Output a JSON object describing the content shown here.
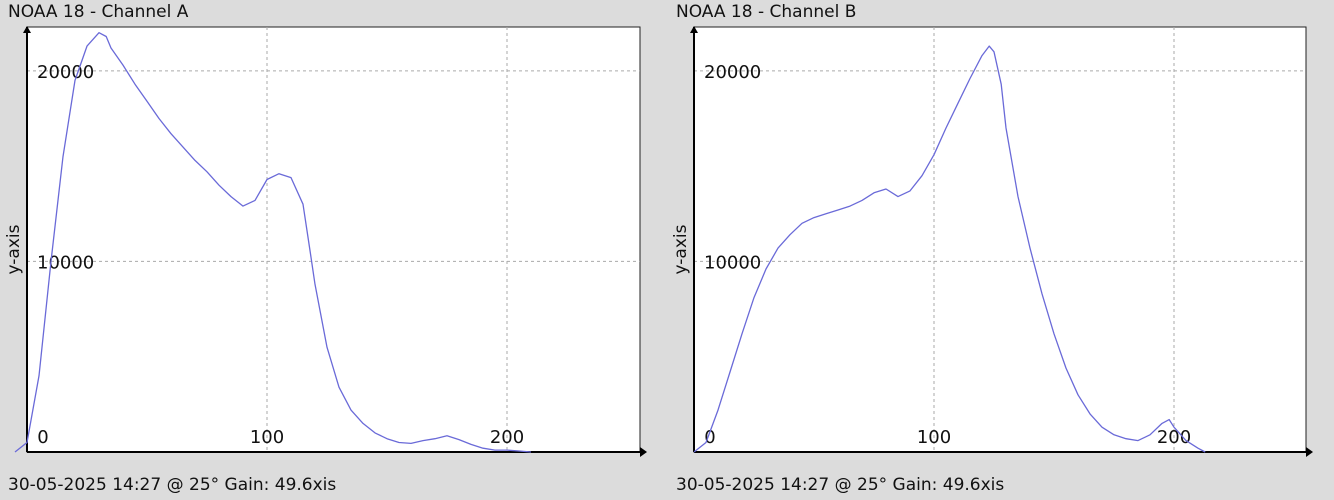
{
  "charts": [
    {
      "title": "NOAA 18 - Channel A",
      "footer": "30-05-2025 14:27 @ 25° Gain: 49.6",
      "footer_axis_text": "xis"
    },
    {
      "title": "NOAA 18 - Channel B",
      "footer": "30-05-2025 14:27 @ 25° Gain: 49.6",
      "footer_axis_text": "xis"
    }
  ],
  "chart_data": [
    {
      "type": "line",
      "title": "NOAA 18 - Channel A",
      "xlabel": "xis",
      "ylabel": "y-axis",
      "xlim": [
        0,
        256
      ],
      "ylim": [
        0,
        22300
      ],
      "x_ticks": [
        0,
        100,
        200
      ],
      "y_ticks": [
        10000,
        20000
      ],
      "grid": true,
      "line_color": "#6a6ad8",
      "series": [
        {
          "x": [
            -5,
            0,
            5,
            10,
            15,
            20,
            25,
            30,
            33,
            35,
            40,
            45,
            50,
            55,
            60,
            65,
            70,
            75,
            80,
            85,
            90,
            95,
            100,
            105,
            110,
            115,
            118,
            120,
            125,
            130,
            135,
            140,
            145,
            150,
            155,
            160,
            165,
            170,
            175,
            180,
            185,
            190,
            195,
            200,
            205,
            210
          ],
          "values": [
            0,
            500,
            4000,
            10000,
            15500,
            19500,
            21300,
            22000,
            21800,
            21200,
            20300,
            19300,
            18400,
            17500,
            16700,
            16000,
            15300,
            14700,
            14000,
            13400,
            12900,
            13200,
            14300,
            14600,
            14400,
            13000,
            10500,
            8800,
            5500,
            3400,
            2200,
            1500,
            1000,
            700,
            500,
            450,
            600,
            700,
            850,
            650,
            400,
            200,
            100,
            100,
            50,
            0
          ]
        }
      ]
    },
    {
      "type": "line",
      "title": "NOAA 18 - Channel B",
      "xlabel": "xis",
      "ylabel": "y-axis",
      "xlim": [
        0,
        256
      ],
      "ylim": [
        0,
        22300
      ],
      "x_ticks": [
        0,
        100,
        200
      ],
      "y_ticks": [
        10000,
        20000
      ],
      "grid": true,
      "line_color": "#6a6ad8",
      "series": [
        {
          "x": [
            0,
            5,
            10,
            15,
            20,
            25,
            30,
            35,
            40,
            45,
            50,
            55,
            60,
            65,
            70,
            75,
            80,
            85,
            90,
            95,
            100,
            105,
            110,
            115,
            120,
            123,
            125,
            128,
            130,
            135,
            140,
            145,
            150,
            155,
            160,
            165,
            170,
            175,
            180,
            185,
            190,
            195,
            198,
            200,
            205,
            210,
            213
          ],
          "values": [
            0,
            500,
            2200,
            4200,
            6200,
            8100,
            9600,
            10700,
            11400,
            12000,
            12300,
            12500,
            12700,
            12900,
            13200,
            13600,
            13800,
            13400,
            13700,
            14500,
            15600,
            17000,
            18300,
            19600,
            20800,
            21300,
            21000,
            19300,
            17000,
            13400,
            10700,
            8300,
            6200,
            4400,
            3000,
            2000,
            1300,
            900,
            700,
            600,
            900,
            1500,
            1700,
            1300,
            600,
            200,
            0
          ]
        }
      ]
    }
  ]
}
